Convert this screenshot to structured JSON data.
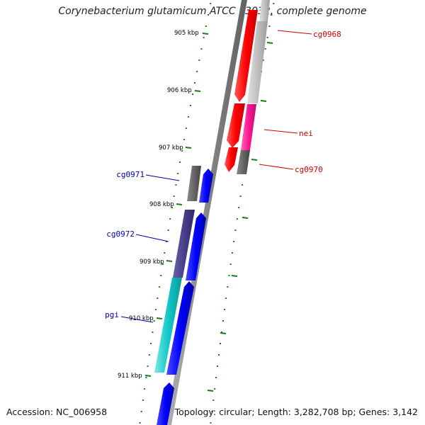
{
  "title": "Corynebacterium glutamicum ATCC 13032, complete genome",
  "footer": {
    "accession": "Accession: NC_006958",
    "summary": "Topology: circular; Length: 3,282,708 bp; Genes: 3,142"
  },
  "ruler": {
    "color": "#1a7a1a",
    "ticks": [
      {
        "kbp": 905,
        "label": "905 kbp"
      },
      {
        "kbp": 906,
        "label": "906 kbp"
      },
      {
        "kbp": 907,
        "label": "907 kbp"
      },
      {
        "kbp": 908,
        "label": "908 kbp"
      },
      {
        "kbp": 909,
        "label": "909 kbp"
      },
      {
        "kbp": 910,
        "label": "910 kbp"
      },
      {
        "kbp": 911,
        "label": "911 kbp"
      }
    ]
  },
  "genes": [
    {
      "label": "cg0968",
      "strand": "forward",
      "color": "#ff0000",
      "label_color": "#cc0000"
    },
    {
      "label": "nei",
      "strand": "forward",
      "color": "#ff0000",
      "label_color": "#cc0000"
    },
    {
      "label": "cg0970",
      "strand": "forward",
      "color": "#ff0000",
      "label_color": "#cc0000"
    },
    {
      "label": "cg0971",
      "strand": "reverse",
      "color": "#0000ff",
      "label_color": "#0000aa"
    },
    {
      "label": "cg0972",
      "strand": "reverse",
      "color": "#0000ff",
      "label_color": "#0000aa"
    },
    {
      "label": "pgi",
      "strand": "reverse",
      "color": "#0000ff",
      "label_color": "#0000aa"
    }
  ],
  "feature_colors": {
    "forward_cds": "#ff0000",
    "reverse_cds": "#0000ff",
    "light_gray": "#c0c0c0",
    "magenta": "#ff1493",
    "dark_gray": "#666666",
    "slate": "#4a3f8a",
    "cyan": "#12c8c8",
    "backbone": "#888888"
  }
}
